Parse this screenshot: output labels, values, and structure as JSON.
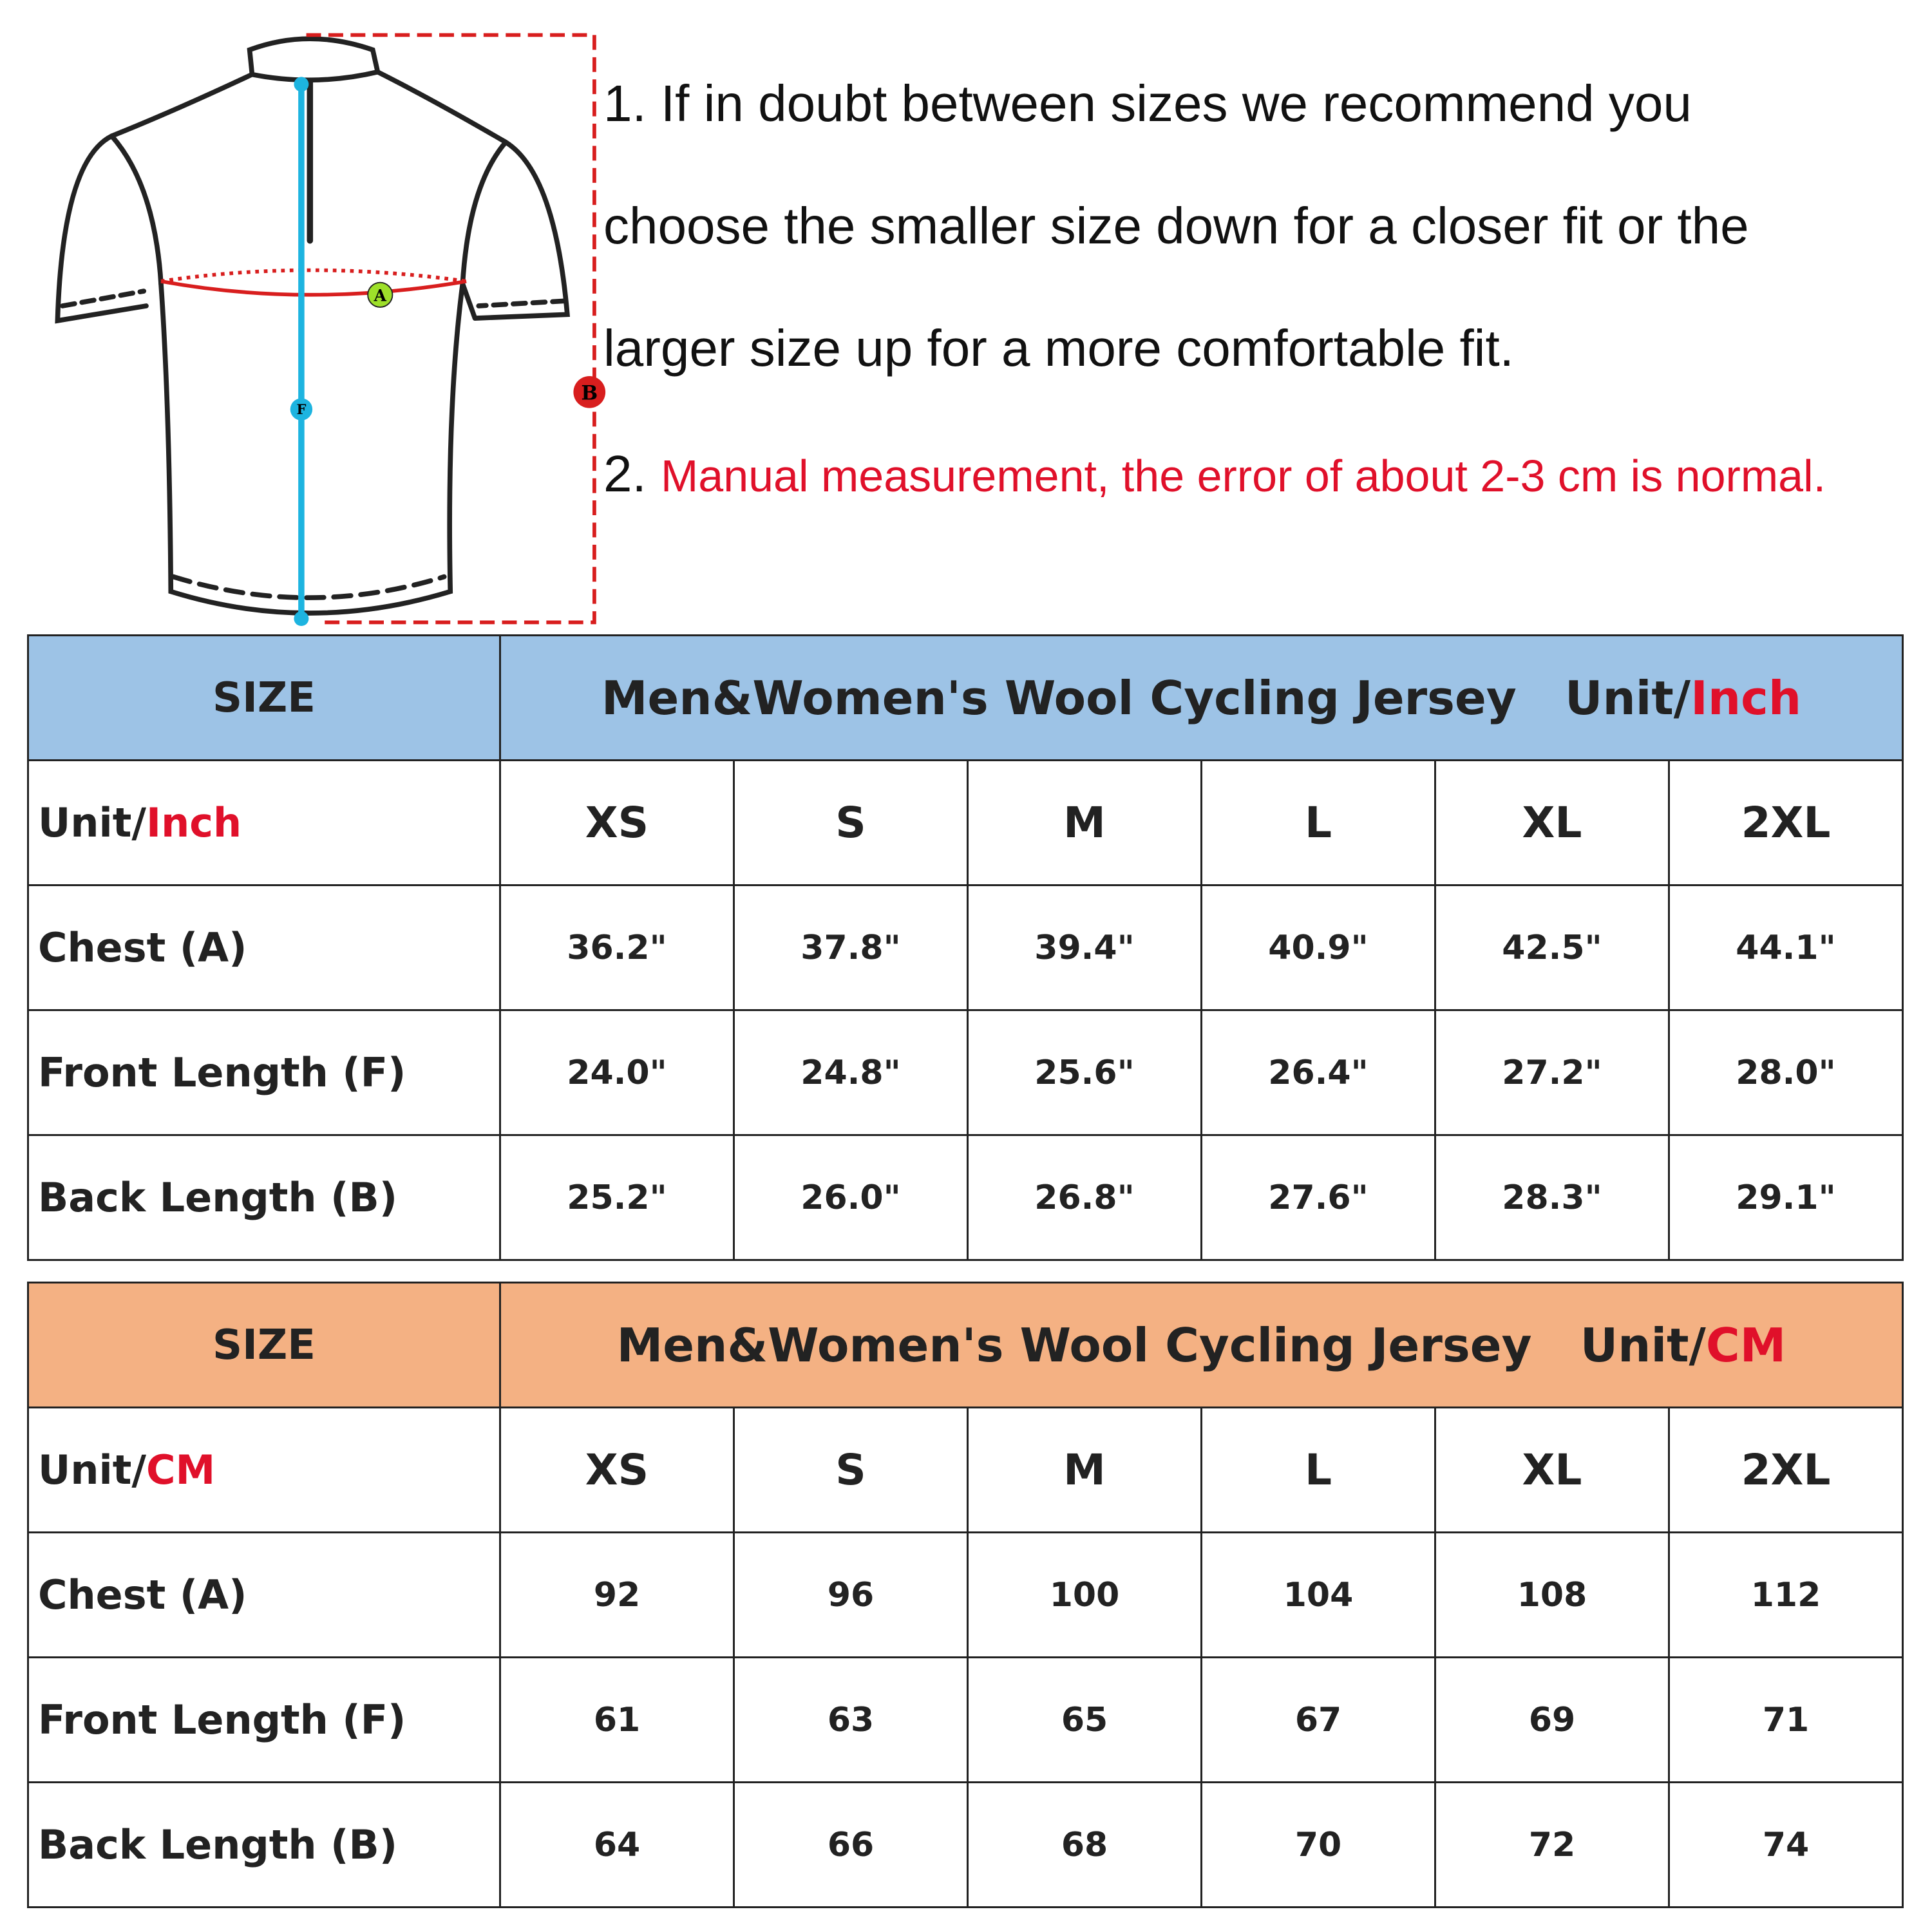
{
  "diagram": {
    "labels": [
      "A",
      "B",
      "F"
    ]
  },
  "notes": [
    {
      "lines": [
        "1. If in doubt between sizes we recommend you",
        "choose the smaller size down for a closer fit or the",
        "larger size up for a more comfortable fit."
      ]
    },
    {
      "number": "2.",
      "text": "Manual measurement, the error of about 2-3 cm is normal."
    }
  ],
  "tables": [
    {
      "size_header": "SIZE",
      "title": "Men&Women's Wool Cycling Jersey",
      "unit_prefix": "Unit/",
      "unit": "Inch",
      "columns": [
        "XS",
        "S",
        "M",
        "L",
        "XL",
        "2XL"
      ],
      "rows": [
        {
          "label": "Chest (A)",
          "cells": [
            "36.2\"",
            "37.8\"",
            "39.4\"",
            "40.9\"",
            "42.5\"",
            "44.1\""
          ]
        },
        {
          "label": "Front Length (F)",
          "cells": [
            "24.0\"",
            "24.8\"",
            "25.6\"",
            "26.4\"",
            "27.2\"",
            "28.0\""
          ]
        },
        {
          "label": "Back Length (B)",
          "cells": [
            "25.2\"",
            "26.0\"",
            "26.8\"",
            "27.6\"",
            "28.3\"",
            "29.1\""
          ]
        }
      ]
    },
    {
      "size_header": "SIZE",
      "title": "Men&Women's Wool Cycling Jersey",
      "unit_prefix": "Unit/",
      "unit": "CM",
      "columns": [
        "XS",
        "S",
        "M",
        "L",
        "XL",
        "2XL"
      ],
      "rows": [
        {
          "label": "Chest (A)",
          "cells": [
            "92",
            "96",
            "100",
            "104",
            "108",
            "112"
          ]
        },
        {
          "label": "Front Length (F)",
          "cells": [
            "61",
            "63",
            "65",
            "67",
            "69",
            "71"
          ]
        },
        {
          "label": "Back Length (B)",
          "cells": [
            "64",
            "66",
            "68",
            "70",
            "72",
            "74"
          ]
        }
      ]
    }
  ]
}
